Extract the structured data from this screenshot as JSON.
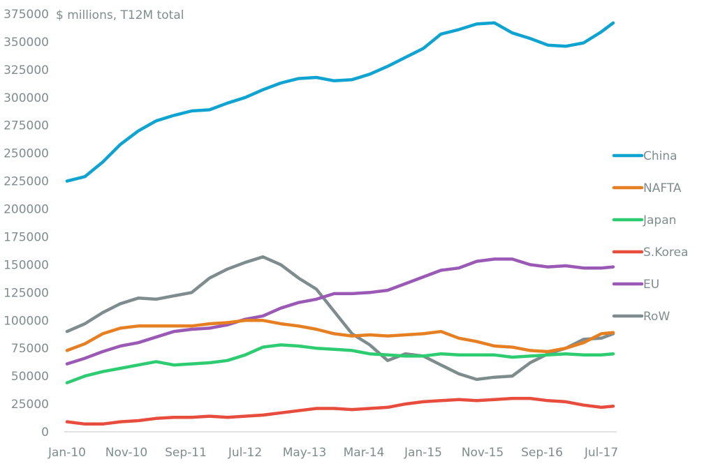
{
  "chart_data": {
    "type": "line",
    "title": "",
    "unit_label": "$ millions, T12M total",
    "xlabel": "",
    "ylabel": "",
    "ylim": [
      0,
      375000
    ],
    "yticks": [
      0,
      25000,
      50000,
      75000,
      100000,
      125000,
      150000,
      175000,
      200000,
      225000,
      250000,
      275000,
      300000,
      325000,
      350000,
      375000
    ],
    "ytick_labels": [
      "0",
      "25000",
      "50000",
      "75000",
      "100000",
      "125000",
      "150000",
      "175000",
      "200000",
      "225000",
      "250000",
      "275000",
      "300000",
      "325000",
      "350000",
      "375000"
    ],
    "x_unit": "months since Jan-10",
    "xlim": [
      0,
      93
    ],
    "xticks": [
      0,
      10,
      20,
      30,
      40,
      50,
      60,
      70,
      80,
      90
    ],
    "xtick_labels": [
      "Jan-10",
      "Nov-10",
      "Sep-11",
      "Jul-12",
      "May-13",
      "Mar-14",
      "Jan-15",
      "Nov-15",
      "Sep-16",
      "Jul-17"
    ],
    "grid": false,
    "legend_position": "right",
    "x": [
      0,
      3,
      6,
      9,
      12,
      15,
      18,
      21,
      24,
      27,
      30,
      33,
      36,
      39,
      42,
      45,
      48,
      51,
      54,
      57,
      60,
      63,
      66,
      69,
      72,
      75,
      78,
      81,
      84,
      87,
      90,
      92
    ],
    "series": [
      {
        "name": "China",
        "color": "#0fa3d1",
        "values": [
          225000,
          229000,
          242000,
          258000,
          270000,
          279000,
          284000,
          288000,
          289000,
          295000,
          300000,
          307000,
          313000,
          317000,
          318000,
          315000,
          316000,
          321000,
          328000,
          336000,
          344000,
          357000,
          361000,
          366000,
          367000,
          358000,
          353000,
          347000,
          346000,
          349000,
          359000,
          367000
        ]
      },
      {
        "name": "NAFTA",
        "color": "#e67e22",
        "values": [
          73000,
          79000,
          88000,
          93000,
          95000,
          95000,
          95000,
          95000,
          97000,
          98000,
          100000,
          100000,
          97000,
          95000,
          92000,
          88000,
          86000,
          87000,
          86000,
          87000,
          88000,
          90000,
          84000,
          81000,
          77000,
          76000,
          73000,
          72000,
          75000,
          80000,
          88000,
          89000
        ]
      },
      {
        "name": "Japan",
        "color": "#2ecc71",
        "values": [
          44000,
          50000,
          54000,
          57000,
          60000,
          63000,
          60000,
          61000,
          62000,
          64000,
          69000,
          76000,
          78000,
          77000,
          75000,
          74000,
          73000,
          70000,
          69000,
          68000,
          68000,
          70000,
          69000,
          69000,
          69000,
          67000,
          68000,
          69000,
          70000,
          69000,
          69000,
          70000
        ]
      },
      {
        "name": "S.Korea",
        "color": "#e74c3c",
        "values": [
          9000,
          7000,
          7000,
          9000,
          10000,
          12000,
          13000,
          13000,
          14000,
          13000,
          14000,
          15000,
          17000,
          19000,
          21000,
          21000,
          20000,
          21000,
          22000,
          25000,
          27000,
          28000,
          29000,
          28000,
          29000,
          30000,
          30000,
          28000,
          27000,
          24000,
          22000,
          23000
        ]
      },
      {
        "name": "EU",
        "color": "#9b59b6",
        "values": [
          61000,
          66000,
          72000,
          77000,
          80000,
          85000,
          90000,
          92000,
          93000,
          96000,
          101000,
          104000,
          111000,
          116000,
          119000,
          124000,
          124000,
          125000,
          127000,
          133000,
          139000,
          145000,
          147000,
          153000,
          155000,
          155000,
          150000,
          148000,
          149000,
          147000,
          147000,
          148000
        ]
      },
      {
        "name": "RoW",
        "color": "#7f8c8d",
        "values": [
          90000,
          97000,
          107000,
          115000,
          120000,
          119000,
          122000,
          125000,
          138000,
          146000,
          152000,
          157000,
          150000,
          138000,
          128000,
          108000,
          88000,
          78000,
          64000,
          70000,
          68000,
          60000,
          52000,
          47000,
          49000,
          50000,
          62000,
          70000,
          75000,
          83000,
          84000,
          88000
        ]
      }
    ]
  }
}
